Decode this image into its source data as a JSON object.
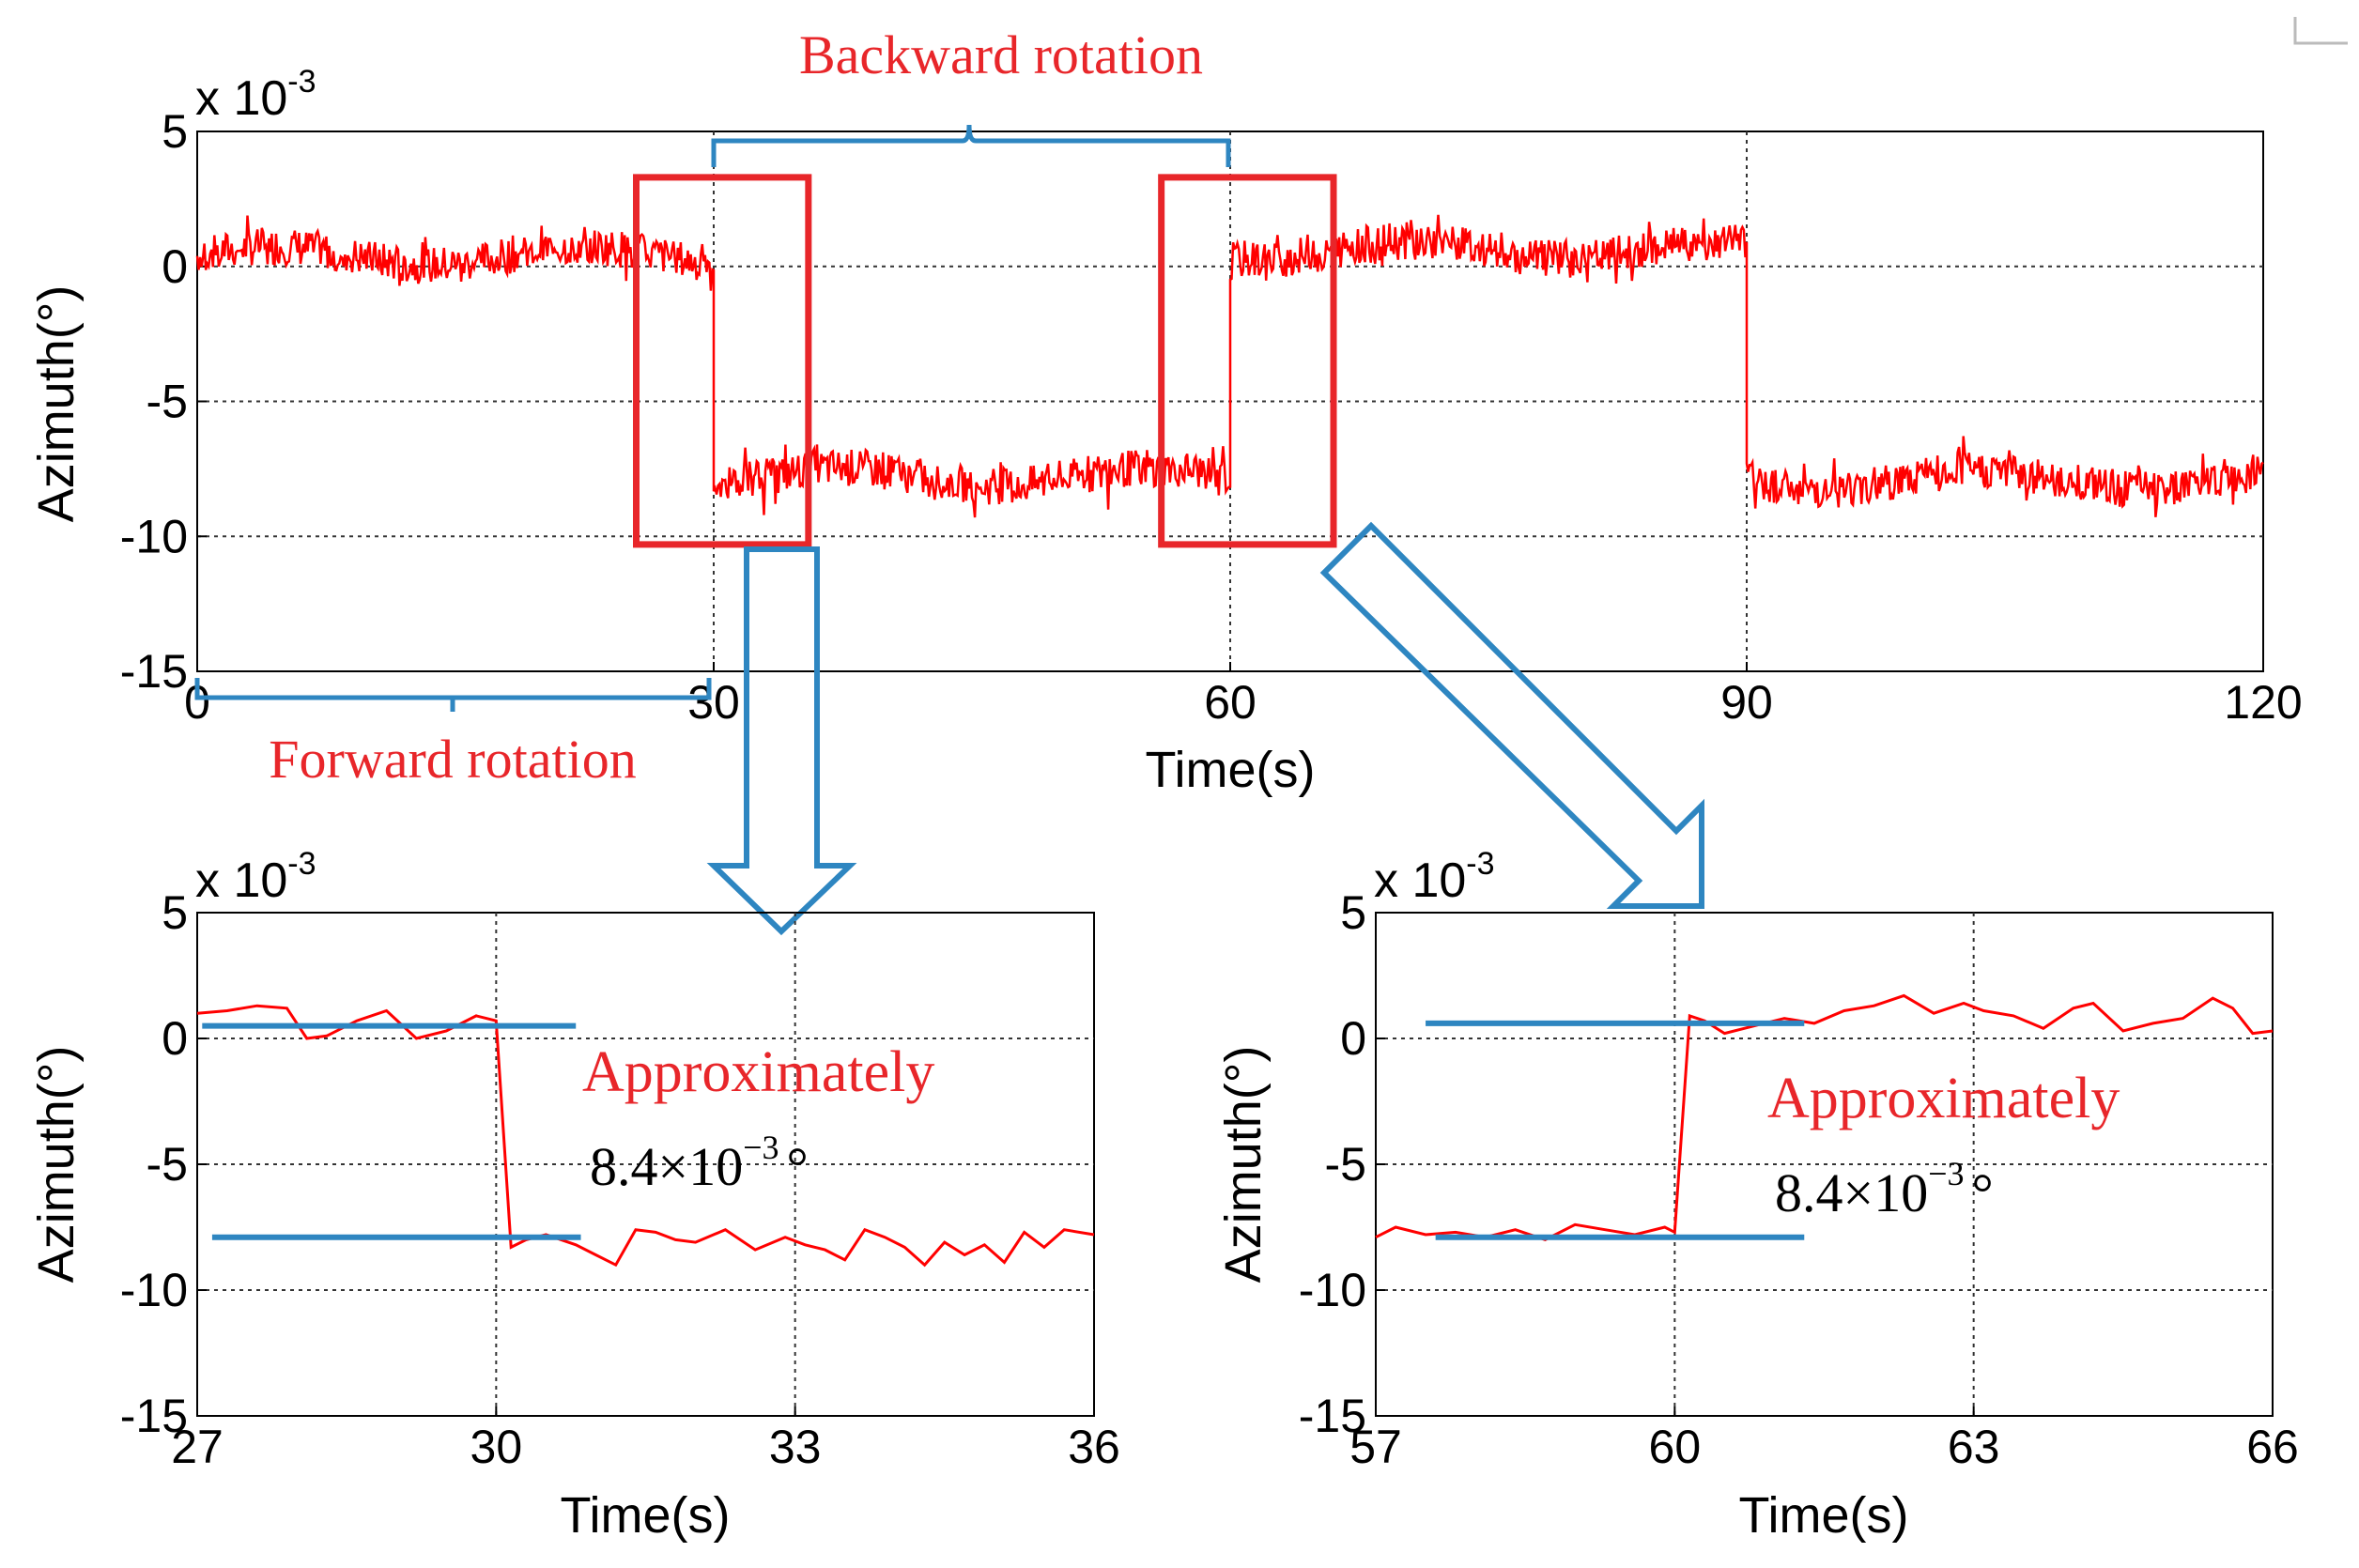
{
  "colors": {
    "series": "#ff0000",
    "annotation_blue": "#2e86c1",
    "box_red": "#e8262a"
  },
  "chart_data": [
    {
      "id": "main",
      "type": "line",
      "xlabel": "Time(s)",
      "ylabel": "Azimuth(°)",
      "exponent": "x 10",
      "exponent_power": "-3",
      "xlim": [
        0,
        120
      ],
      "ylim": [
        -15,
        5
      ],
      "xticks": [
        "0",
        "30",
        "60",
        "90",
        "120"
      ],
      "yticks": [
        "5",
        "0",
        "-5",
        "-10",
        "-15"
      ],
      "grid": true,
      "segments": [
        {
          "x_range": [
            0,
            30
          ],
          "mean": 0.4
        },
        {
          "x_range": [
            30,
            60
          ],
          "mean": -7.8
        },
        {
          "x_range": [
            60,
            90
          ],
          "mean": 0.6
        },
        {
          "x_range": [
            90,
            120
          ],
          "mean": -7.9
        }
      ],
      "highlight_boxes": [
        {
          "x_range": [
            25.5,
            35.5
          ],
          "y_range": [
            -10.3,
            3.3
          ]
        },
        {
          "x_range": [
            56,
            66
          ],
          "y_range": [
            -10.3,
            3.3
          ]
        }
      ],
      "annotations": {
        "forward": {
          "label": "Forward rotation",
          "x_range": [
            0,
            30
          ]
        },
        "backward": {
          "label": "Backward rotation",
          "x_range": [
            30,
            60
          ]
        }
      }
    },
    {
      "id": "zoom-left",
      "type": "line",
      "xlabel": "Time(s)",
      "ylabel": "Azimuth(°)",
      "exponent": "x 10",
      "exponent_power": "-3",
      "xlim": [
        27,
        36
      ],
      "ylim": [
        -15,
        5
      ],
      "xticks": [
        "27",
        "30",
        "33",
        "36"
      ],
      "yticks": [
        "5",
        "0",
        "-5",
        "-10",
        "-15"
      ],
      "grid": true,
      "x": [
        27.0,
        27.3,
        27.6,
        27.9,
        28.1,
        28.3,
        28.6,
        28.9,
        29.2,
        29.5,
        29.8,
        30.0,
        30.15,
        30.3,
        30.5,
        30.8,
        31.0,
        31.2,
        31.4,
        31.6,
        31.8,
        32.0,
        32.3,
        32.6,
        32.9,
        33.1,
        33.3,
        33.5,
        33.7,
        33.9,
        34.1,
        34.3,
        34.5,
        34.7,
        34.9,
        35.1,
        35.3,
        35.5,
        35.7,
        36.0
      ],
      "y": [
        1.0,
        1.1,
        1.3,
        1.2,
        0.0,
        0.1,
        0.7,
        1.1,
        0.0,
        0.3,
        0.9,
        0.7,
        -8.3,
        -8.0,
        -7.8,
        -8.2,
        -8.6,
        -9.0,
        -7.6,
        -7.7,
        -8.0,
        -8.1,
        -7.6,
        -8.4,
        -7.9,
        -8.2,
        -8.4,
        -8.8,
        -7.6,
        -7.9,
        -8.3,
        -9.0,
        -8.1,
        -8.6,
        -8.2,
        -8.9,
        -7.7,
        -8.3,
        -7.6,
        -7.8
      ],
      "reference_lines": [
        {
          "y": 0.5,
          "x_range": [
            27.05,
            30.8
          ]
        },
        {
          "y": -7.9,
          "x_range": [
            27.15,
            30.85
          ]
        }
      ],
      "annotation_text": "Approximately",
      "annotation_value": "8.4×10",
      "annotation_power": "−3",
      "annotation_unit": "°"
    },
    {
      "id": "zoom-right",
      "type": "line",
      "xlabel": "Time(s)",
      "ylabel": "Azimuth(°)",
      "exponent": "x 10",
      "exponent_power": "-3",
      "xlim": [
        57,
        66
      ],
      "ylim": [
        -15,
        5
      ],
      "xticks": [
        "57",
        "60",
        "63",
        "66"
      ],
      "yticks": [
        "5",
        "0",
        "-5",
        "-10",
        "-15"
      ],
      "grid": true,
      "x": [
        57.0,
        57.2,
        57.5,
        57.8,
        58.1,
        58.4,
        58.7,
        59.0,
        59.3,
        59.6,
        59.9,
        60.0,
        60.15,
        60.3,
        60.5,
        60.8,
        61.1,
        61.4,
        61.7,
        62.0,
        62.3,
        62.6,
        62.9,
        63.1,
        63.4,
        63.7,
        64.0,
        64.2,
        64.5,
        64.8,
        65.1,
        65.4,
        65.6,
        65.8,
        66.0
      ],
      "y": [
        -7.9,
        -7.5,
        -7.8,
        -7.7,
        -7.9,
        -7.6,
        -8.0,
        -7.4,
        -7.6,
        -7.8,
        -7.5,
        -7.7,
        0.9,
        0.7,
        0.2,
        0.5,
        0.8,
        0.6,
        1.1,
        1.3,
        1.7,
        1.0,
        1.4,
        1.1,
        0.9,
        0.4,
        1.2,
        1.4,
        0.3,
        0.6,
        0.8,
        1.6,
        1.2,
        0.2,
        0.3
      ],
      "reference_lines": [
        {
          "y": 0.6,
          "x_range": [
            57.5,
            61.3
          ]
        },
        {
          "y": -7.9,
          "x_range": [
            57.6,
            61.3
          ]
        }
      ],
      "annotation_text": "Approximately",
      "annotation_value": "8.4×10",
      "annotation_power": "−3",
      "annotation_unit": "°"
    }
  ]
}
